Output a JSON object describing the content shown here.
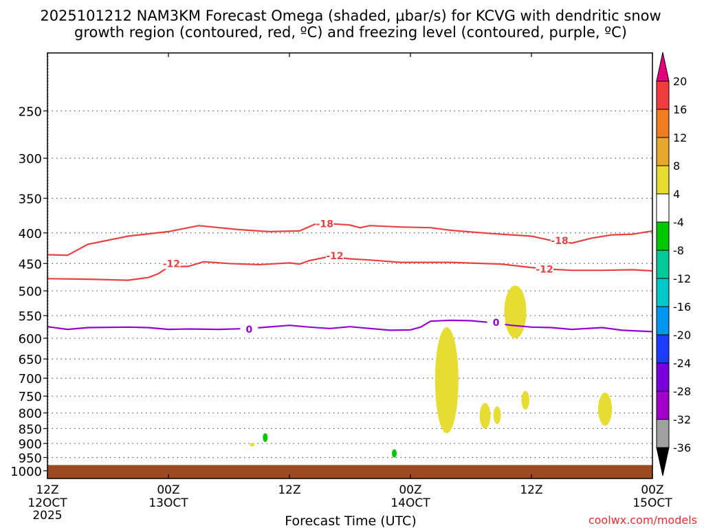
{
  "chart_data": {
    "type": "time-height",
    "title_line1": "2025101212 NAM3KM Forecast Omega (shaded, μbar/s) for KCVG with dendritic snow",
    "title_line2": "growth region (contoured, red, ºC) and freezing level (contoured, purple, ºC)",
    "xlabel": "Forecast Time (UTC)",
    "credit": "coolwx.com/models",
    "xlim_hours": [
      0,
      60
    ],
    "x_ticks": [
      {
        "hour": 0,
        "top": "12Z",
        "mid": "12OCT",
        "bot": "2025"
      },
      {
        "hour": 12,
        "top": "00Z",
        "mid": "13OCT",
        "bot": ""
      },
      {
        "hour": 24,
        "top": "12Z",
        "mid": "",
        "bot": ""
      },
      {
        "hour": 36,
        "top": "00Z",
        "mid": "14OCT",
        "bot": ""
      },
      {
        "hour": 48,
        "top": "12Z",
        "mid": "",
        "bot": ""
      },
      {
        "hour": 60,
        "top": "00Z",
        "mid": "15OCT",
        "bot": ""
      }
    ],
    "y_ticks_hpa": [
      250,
      300,
      350,
      400,
      450,
      500,
      550,
      600,
      650,
      700,
      750,
      800,
      850,
      900,
      950,
      1000
    ],
    "ylim_hpa": [
      200,
      1030
    ],
    "colorbar": {
      "labels": [
        "20",
        "16",
        "12",
        "8",
        "4",
        "-4",
        "-8",
        "-12",
        "-16",
        "-20",
        "-24",
        "-28",
        "-32",
        "-36"
      ],
      "top_arrow": "#e6007e",
      "bottom_arrow": "#000000",
      "bands": [
        "#f03c3c",
        "#f07e1e",
        "#e6a82d",
        "#e6dc32",
        "#ffffff",
        "#00c800",
        "#00c896",
        "#00c8c8",
        "#0096f0",
        "#1e3cff",
        "#7800dc",
        "#a000c8",
        "#a0a0a0"
      ]
    },
    "contours": [
      {
        "color": "#e84040",
        "label": "-18",
        "points": [
          [
            0,
            435
          ],
          [
            2,
            436
          ],
          [
            4,
            418
          ],
          [
            8,
            405
          ],
          [
            12,
            398
          ],
          [
            15,
            389
          ],
          [
            19,
            395
          ],
          [
            22,
            398
          ],
          [
            25,
            397
          ],
          [
            26.5,
            387
          ],
          [
            28,
            386
          ],
          [
            30,
            388
          ],
          [
            31,
            392
          ],
          [
            32,
            389
          ],
          [
            35,
            391
          ],
          [
            38,
            392
          ],
          [
            40,
            396
          ],
          [
            44,
            401
          ],
          [
            48,
            405
          ],
          [
            50,
            412
          ],
          [
            52,
            416
          ],
          [
            54,
            408
          ],
          [
            56,
            403
          ],
          [
            58,
            402
          ],
          [
            60,
            397
          ]
        ],
        "label_at": [
          [
            27.5,
            386
          ],
          [
            50.8,
            412
          ]
        ]
      },
      {
        "color": "#e84040",
        "label": "-12",
        "points": [
          [
            0,
            477
          ],
          [
            4,
            478
          ],
          [
            8,
            480
          ],
          [
            10,
            475
          ],
          [
            11,
            468
          ],
          [
            12,
            456
          ],
          [
            14,
            455
          ],
          [
            15.5,
            447
          ],
          [
            18,
            450
          ],
          [
            21,
            452
          ],
          [
            24,
            449
          ],
          [
            25,
            451
          ],
          [
            26,
            445
          ],
          [
            28,
            438
          ],
          [
            30,
            442
          ],
          [
            32,
            444
          ],
          [
            35,
            448
          ],
          [
            38,
            448
          ],
          [
            40,
            448
          ],
          [
            45,
            451
          ],
          [
            48,
            457
          ],
          [
            50,
            460
          ],
          [
            52,
            462
          ],
          [
            55,
            462
          ],
          [
            58,
            461
          ],
          [
            60,
            463
          ]
        ],
        "label_at": [
          [
            12.3,
            450
          ],
          [
            28.5,
            437
          ],
          [
            49.3,
            460
          ]
        ]
      },
      {
        "color": "#9400d3",
        "label": "0",
        "points": [
          [
            0,
            574
          ],
          [
            2,
            580
          ],
          [
            4,
            576
          ],
          [
            8,
            575
          ],
          [
            10,
            576
          ],
          [
            12,
            580
          ],
          [
            14,
            579
          ],
          [
            17,
            580
          ],
          [
            20,
            578
          ],
          [
            24,
            571
          ],
          [
            26,
            575
          ],
          [
            28,
            578
          ],
          [
            30,
            574
          ],
          [
            32,
            578
          ],
          [
            34,
            582
          ],
          [
            36,
            581
          ],
          [
            37,
            575
          ],
          [
            38,
            562
          ],
          [
            40,
            560
          ],
          [
            42,
            561
          ],
          [
            44,
            565
          ],
          [
            46,
            571
          ],
          [
            48,
            575
          ],
          [
            50,
            576
          ],
          [
            52,
            580
          ],
          [
            55,
            576
          ],
          [
            57,
            582
          ],
          [
            60,
            585
          ]
        ],
        "label_at": [
          [
            20,
            580
          ],
          [
            44.5,
            565
          ]
        ]
      }
    ],
    "shaded_regions": [
      {
        "category": "4 to 8",
        "color": "#e6dc32",
        "center_hour": 39.6,
        "top_hpa": 575,
        "bottom_hpa": 865
      },
      {
        "category": "4 to 8",
        "color": "#e6dc32",
        "center_hour": 43.4,
        "top_hpa": 770,
        "bottom_hpa": 850
      },
      {
        "category": "4 to 8",
        "color": "#e6dc32",
        "center_hour": 44.6,
        "top_hpa": 780,
        "bottom_hpa": 835
      },
      {
        "category": "4 to 8",
        "color": "#e6dc32",
        "center_hour": 46.4,
        "top_hpa": 490,
        "bottom_hpa": 600
      },
      {
        "category": "4 to 8",
        "color": "#e6dc32",
        "center_hour": 47.4,
        "top_hpa": 735,
        "bottom_hpa": 790
      },
      {
        "category": "4 to 8",
        "color": "#e6dc32",
        "center_hour": 55.3,
        "top_hpa": 740,
        "bottom_hpa": 840
      },
      {
        "category": "-4 to -8",
        "color": "#00c800",
        "center_hour": 21.6,
        "top_hpa": 865,
        "bottom_hpa": 895
      },
      {
        "category": "-4 to -8",
        "color": "#00c800",
        "center_hour": 34.4,
        "top_hpa": 920,
        "bottom_hpa": 950
      },
      {
        "category": "4 to 8",
        "color": "#e6dc32",
        "center_hour": 20.3,
        "top_hpa": 898,
        "bottom_hpa": 910
      }
    ],
    "terrain": {
      "color": "#9c4a20",
      "top_hpa": 978
    }
  }
}
